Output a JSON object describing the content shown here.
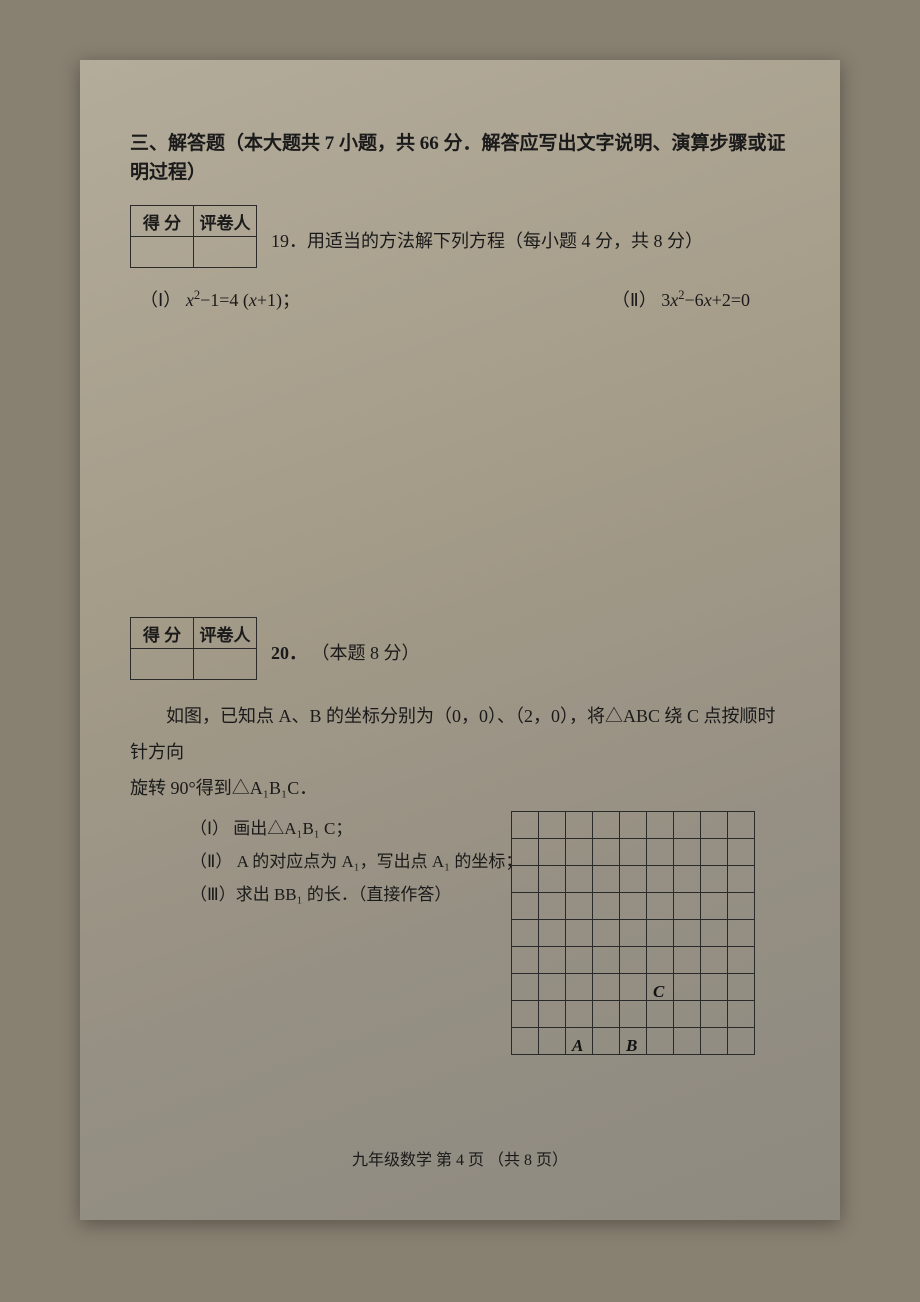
{
  "section": {
    "title": "三、解答题（本大题共 7 小题，共 66 分．解答应写出文字说明、演算步骤或证明过程）"
  },
  "score_box": {
    "header1": "得  分",
    "header2": "评卷人"
  },
  "q19": {
    "prompt": "19．用适当的方法解下列方程（每小题 4 分，共 8 分）",
    "part1_label": "（Ⅰ）",
    "part1_eq_lhs": "x",
    "part1_eq_text1": "²−1=4 (x+1)；",
    "part2_label": "（Ⅱ）",
    "part2_eq": "3x²−6x+2=0"
  },
  "q20": {
    "number": "20．",
    "points": "（本题 8 分）",
    "body1": "如图，已知点 A、B 的坐标分别为（0，0）、（2，0），将△ABC 绕 C 点按顺时针方向",
    "body2": "旋转 90°得到△A₁B₁C．",
    "sub1": "（Ⅰ） 画出△A₁B₁ C；",
    "sub2": "（Ⅱ） A 的对应点为 A₁，写出点 A₁ 的坐标；",
    "sub3": "（Ⅲ）求出 BB₁ 的长．（直接作答）"
  },
  "grid": {
    "rows": 9,
    "cols": 9,
    "labels": {
      "A": {
        "row": 8,
        "col": 2
      },
      "B": {
        "row": 8,
        "col": 4
      },
      "C": {
        "row": 6,
        "col": 5
      }
    }
  },
  "footer": "九年级数学  第  4  页 （共  8  页）"
}
